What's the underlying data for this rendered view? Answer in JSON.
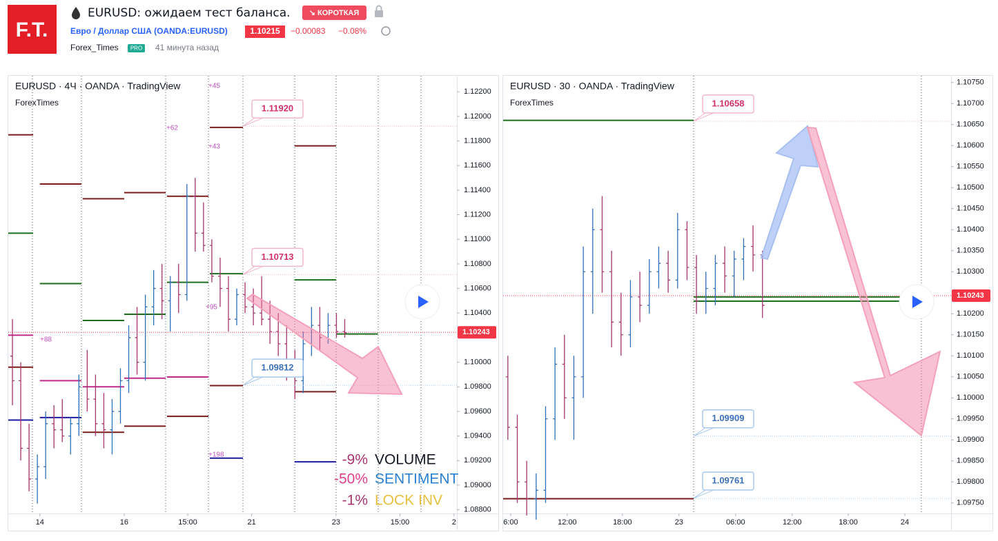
{
  "header": {
    "logo": "F.T.",
    "title": "EURUSD: ожидаем тест баланса.",
    "badge": "↘ КОРОТКАЯ",
    "symbol": "Евро / Доллар США (OANDA:EURUSD)",
    "price": "1.10215",
    "change": "−0.00083",
    "change_pct": "−0.08%",
    "author": "Forex_Times",
    "pro": "PRO",
    "time": "41 минута назад"
  },
  "chart_data": [
    {
      "type": "ohlc",
      "title": "EURUSD · 4Ч · OANDA · TradingView",
      "watermark": "ForexTimes",
      "up_color": "#2f6fb5",
      "down_color": "#a3356f",
      "xlim": [
        0,
        108
      ],
      "xticks": [
        {
          "value": 7.6,
          "label": "14"
        },
        {
          "value": 27.9,
          "label": "16"
        },
        {
          "value": 43.2,
          "label": "15:00"
        },
        {
          "value": 58.6,
          "label": "21"
        },
        {
          "value": 78.9,
          "label": "23"
        },
        {
          "value": 94.3,
          "label": "15:00"
        },
        {
          "value": 107.3,
          "label": "2"
        }
      ],
      "ylim": [
        1.0877,
        1.1233
      ],
      "yticks": [
        {
          "value": 1.122,
          "label": "1.12200"
        },
        {
          "value": 1.12,
          "label": "1.12000"
        },
        {
          "value": 1.118,
          "label": "1.11800"
        },
        {
          "value": 1.116,
          "label": "1.11600"
        },
        {
          "value": 1.114,
          "label": "1.11400"
        },
        {
          "value": 1.112,
          "label": "1.11200"
        },
        {
          "value": 1.11,
          "label": "1.11000"
        },
        {
          "value": 1.108,
          "label": "1.10800"
        },
        {
          "value": 1.106,
          "label": "1.10600"
        },
        {
          "value": 1.104,
          "label": "1.10400"
        },
        {
          "value": 1.1,
          "label": "1.10000"
        },
        {
          "value": 1.098,
          "label": "1.09800"
        },
        {
          "value": 1.096,
          "label": "1.09600"
        },
        {
          "value": 1.094,
          "label": "1.09400"
        },
        {
          "value": 1.092,
          "label": "1.09200"
        },
        {
          "value": 1.09,
          "label": "1.09000"
        },
        {
          "value": 1.088,
          "label": "1.08800"
        }
      ],
      "bars": {
        "x": [
          1,
          3,
          5,
          7,
          9,
          11,
          13,
          15,
          17,
          19,
          21,
          23,
          25,
          27,
          29,
          31,
          33,
          35,
          37,
          39,
          41,
          43,
          45,
          47,
          49,
          51,
          53,
          55,
          57,
          59,
          61,
          63,
          65,
          67,
          69,
          71,
          73,
          75,
          77,
          79,
          81
        ],
        "ohlc": [
          [
            1.1005,
            1.1035,
            1.0965,
            1.0985
          ],
          [
            1.0985,
            1.1,
            1.092,
            1.093
          ],
          [
            1.093,
            1.095,
            1.0895,
            1.0905
          ],
          [
            1.0905,
            1.0925,
            1.0885,
            1.0915
          ],
          [
            1.0915,
            1.096,
            1.0905,
            1.095
          ],
          [
            1.095,
            1.0965,
            1.093,
            1.0945
          ],
          [
            1.0945,
            1.097,
            1.0935,
            1.094
          ],
          [
            1.094,
            1.0955,
            1.0925,
            1.095
          ],
          [
            1.095,
            1.099,
            1.094,
            1.098
          ],
          [
            1.098,
            1.101,
            1.096,
            1.097
          ],
          [
            1.097,
            1.099,
            1.094,
            1.095
          ],
          [
            1.095,
            1.0975,
            1.093,
            1.0945
          ],
          [
            1.0945,
            1.097,
            1.0925,
            1.096
          ],
          [
            1.096,
            1.0995,
            1.095,
            1.0985
          ],
          [
            1.0985,
            1.103,
            1.0975,
            1.102
          ],
          [
            1.102,
            1.1045,
            1.099,
            1.1
          ],
          [
            1.1,
            1.1055,
            1.0985,
            1.1045
          ],
          [
            1.1045,
            1.1075,
            1.103,
            1.106
          ],
          [
            1.106,
            1.108,
            1.1035,
            1.105
          ],
          [
            1.105,
            1.107,
            1.1025,
            1.1065
          ],
          [
            1.1065,
            1.108,
            1.104,
            1.1055
          ],
          [
            1.1055,
            1.1145,
            1.105,
            1.1135
          ],
          [
            1.1135,
            1.115,
            1.109,
            1.1105
          ],
          [
            1.1105,
            1.113,
            1.109,
            1.1095
          ],
          [
            1.1095,
            1.11,
            1.1065,
            1.107
          ],
          [
            1.107,
            1.1085,
            1.1045,
            1.106
          ],
          [
            1.106,
            1.107,
            1.1025,
            1.1035
          ],
          [
            1.1035,
            1.106,
            1.103,
            1.1055
          ],
          [
            1.1055,
            1.1065,
            1.104,
            1.1045
          ],
          [
            1.1045,
            1.106,
            1.103,
            1.104
          ],
          [
            1.104,
            1.107,
            1.103,
            1.1035
          ],
          [
            1.1035,
            1.105,
            1.1015,
            1.1025
          ],
          [
            1.1025,
            1.104,
            1.1005,
            1.1015
          ],
          [
            1.1015,
            1.103,
            1.0985,
            1.0995
          ],
          [
            1.0995,
            1.101,
            1.097,
            1.0985
          ],
          [
            1.0985,
            1.1025,
            1.0975,
            1.1015
          ],
          [
            1.1015,
            1.1045,
            1.1005,
            1.103
          ],
          [
            1.103,
            1.1045,
            1.101,
            1.102
          ],
          [
            1.102,
            1.104,
            1.1015,
            1.103
          ],
          [
            1.103,
            1.104,
            1.102,
            1.1025
          ],
          [
            1.1025,
            1.1035,
            1.102,
            1.1024
          ]
        ]
      },
      "levels": [
        {
          "color": "#7b1a1a",
          "x": [
            0,
            6
          ],
          "value": 1.1185
        },
        {
          "color": "#7b1a1a",
          "x": [
            7.6,
            17.6
          ],
          "value": 1.1145
        },
        {
          "color": "#7b1a1a",
          "x": [
            17.9,
            27.9
          ],
          "value": 1.1133
        },
        {
          "color": "#7b1a1a",
          "x": [
            27.9,
            37.9
          ],
          "value": 1.1138
        },
        {
          "color": "#7b1a1a",
          "x": [
            38.2,
            48.2
          ],
          "value": 1.1135
        },
        {
          "color": "#7b1a1a",
          "x": [
            48.5,
            56.5
          ],
          "value": 1.1191
        },
        {
          "color": "#7b1a1a",
          "x": [
            68.9,
            78.9
          ],
          "value": 1.1176
        },
        {
          "color": "#7b1a1a",
          "x": [
            0,
            6
          ],
          "value": 1.0996
        },
        {
          "color": "#7b1a1a",
          "x": [
            17.9,
            27.9
          ],
          "value": 1.0943
        },
        {
          "color": "#7b1a1a",
          "x": [
            27.9,
            37.9
          ],
          "value": 1.0948
        },
        {
          "color": "#7b1a1a",
          "x": [
            38.2,
            48.2
          ],
          "value": 1.0956
        },
        {
          "color": "#7b1a1a",
          "x": [
            48.5,
            56.5
          ],
          "value": 1.0981
        },
        {
          "color": "#7b1a1a",
          "x": [
            68.9,
            78.9
          ],
          "value": 1.0976
        },
        {
          "color": "#1b6e1b",
          "x": [
            0,
            6
          ],
          "value": 1.1105
        },
        {
          "color": "#1b6e1b",
          "x": [
            7.6,
            17.6
          ],
          "value": 1.1064
        },
        {
          "color": "#1b6e1b",
          "x": [
            17.9,
            27.9
          ],
          "value": 1.1034
        },
        {
          "color": "#1b6e1b",
          "x": [
            27.9,
            37.9
          ],
          "value": 1.1039
        },
        {
          "color": "#1b6e1b",
          "x": [
            38.2,
            48.2
          ],
          "value": 1.1065
        },
        {
          "color": "#1b6e1b",
          "x": [
            48.5,
            56.5
          ],
          "value": 1.1072
        },
        {
          "color": "#1b6e1b",
          "x": [
            68.9,
            78.9
          ],
          "value": 1.1067
        },
        {
          "color": "#1b6e1b",
          "x": [
            78.9,
            89
          ],
          "value": 1.1023
        },
        {
          "color": "#c0288a",
          "x": [
            0,
            6
          ],
          "value": 1.1022
        },
        {
          "color": "#c0288a",
          "x": [
            7.6,
            17.6
          ],
          "value": 1.0985
        },
        {
          "color": "#c0288a",
          "x": [
            17.9,
            27.9
          ],
          "value": 1.098
        },
        {
          "color": "#c0288a",
          "x": [
            27.9,
            37.9
          ],
          "value": 1.0987
        },
        {
          "color": "#c0288a",
          "x": [
            38.2,
            48.2
          ],
          "value": 1.0988
        },
        {
          "color": "#1a1a9e",
          "x": [
            0,
            6
          ],
          "value": 1.0953
        },
        {
          "color": "#1a1a9e",
          "x": [
            7.6,
            17.6
          ],
          "value": 1.0955
        },
        {
          "color": "#1a1a9e",
          "x": [
            48.5,
            56.5
          ],
          "value": 1.0922
        },
        {
          "color": "#1a1a9e",
          "x": [
            68.9,
            78.9
          ],
          "value": 1.0919
        }
      ],
      "callouts": [
        {
          "value": 1.1192,
          "label": "1.11920",
          "x": 56.5,
          "color": "#d0306a"
        },
        {
          "value": 1.10713,
          "label": "1.10713",
          "x": 56.5,
          "color": "#d0306a"
        },
        {
          "value": 1.09812,
          "label": "1.09812",
          "x": 56.5,
          "color": "#3b6fb8"
        }
      ],
      "last_price": {
        "value": 1.10243,
        "label": "1.10243"
      },
      "annotations": [
        "+45",
        "+62",
        "+43",
        "+88",
        "+198",
        "+95"
      ],
      "stats": [
        {
          "value": "-9%",
          "label": "VOLUME"
        },
        {
          "value": "-50%",
          "label": "SENTIMENT"
        },
        {
          "value": "-1%",
          "label": "LOCK INV"
        }
      ]
    },
    {
      "type": "ohlc",
      "title": "EURUSD · 30 · OANDA · TradingView",
      "watermark": "ForexTimes",
      "up_color": "#2f6fb5",
      "down_color": "#a3356f",
      "xlim": [
        0,
        95
      ],
      "xticks": [
        {
          "value": 1.6,
          "label": "6:00"
        },
        {
          "value": 13.6,
          "label": "12:00"
        },
        {
          "value": 25.3,
          "label": "18:00"
        },
        {
          "value": 37.3,
          "label": "23"
        },
        {
          "value": 49.3,
          "label": "06:00"
        },
        {
          "value": 61.3,
          "label": "12:00"
        },
        {
          "value": 73.2,
          "label": "18:00"
        },
        {
          "value": 85.2,
          "label": "24"
        }
      ],
      "ylim": [
        1.09725,
        1.10766
      ],
      "yticks": [
        {
          "value": 1.1075,
          "label": "1.10750"
        },
        {
          "value": 1.107,
          "label": "1.10700"
        },
        {
          "value": 1.1065,
          "label": "1.10650"
        },
        {
          "value": 1.106,
          "label": "1.10600"
        },
        {
          "value": 1.1055,
          "label": "1.10550"
        },
        {
          "value": 1.105,
          "label": "1.10500"
        },
        {
          "value": 1.1045,
          "label": "1.10450"
        },
        {
          "value": 1.104,
          "label": "1.10400"
        },
        {
          "value": 1.1035,
          "label": "1.10350"
        },
        {
          "value": 1.103,
          "label": "1.10300"
        },
        {
          "value": 1.102,
          "label": "1.10200"
        },
        {
          "value": 1.1015,
          "label": "1.10150"
        },
        {
          "value": 1.101,
          "label": "1.10100"
        },
        {
          "value": 1.1005,
          "label": "1.10050"
        },
        {
          "value": 1.1,
          "label": "1.10000"
        },
        {
          "value": 1.0995,
          "label": "1.09950"
        },
        {
          "value": 1.099,
          "label": "1.09900"
        },
        {
          "value": 1.0985,
          "label": "1.09850"
        },
        {
          "value": 1.098,
          "label": "1.09800"
        },
        {
          "value": 1.0975,
          "label": "1.09750"
        }
      ],
      "bars": {
        "x": [
          1,
          3,
          5,
          7,
          9,
          11,
          13,
          15,
          17,
          19,
          21,
          23,
          25,
          27,
          29,
          31,
          33,
          35,
          37,
          39,
          41,
          43,
          45,
          47,
          49,
          51,
          53,
          55
        ],
        "ohlc": [
          [
            1.1005,
            1.101,
            1.099,
            1.0993
          ],
          [
            1.0993,
            1.0996,
            1.0975,
            1.098
          ],
          [
            1.098,
            1.0985,
            1.0972,
            1.0976
          ],
          [
            1.0976,
            1.0982,
            1.0971,
            1.0978
          ],
          [
            1.0978,
            1.0998,
            1.0975,
            1.0995
          ],
          [
            1.0995,
            1.1012,
            1.099,
            1.1008
          ],
          [
            1.1008,
            1.1015,
            1.0995,
            1.1
          ],
          [
            1.1,
            1.101,
            1.099,
            1.1005
          ],
          [
            1.1005,
            1.1036,
            1.1,
            1.103
          ],
          [
            1.103,
            1.1045,
            1.102,
            1.104
          ],
          [
            1.104,
            1.1048,
            1.1025,
            1.103
          ],
          [
            1.103,
            1.1035,
            1.1012,
            1.1018
          ],
          [
            1.1018,
            1.1025,
            1.101,
            1.1015
          ],
          [
            1.1015,
            1.1028,
            1.1012,
            1.1024
          ],
          [
            1.1024,
            1.103,
            1.1018,
            1.1022
          ],
          [
            1.1022,
            1.1033,
            1.102,
            1.103
          ],
          [
            1.103,
            1.1036,
            1.1026,
            1.1032
          ],
          [
            1.1032,
            1.1035,
            1.1025,
            1.1028
          ],
          [
            1.1028,
            1.1044,
            1.1026,
            1.104
          ],
          [
            1.104,
            1.1042,
            1.1028,
            1.1031
          ],
          [
            1.1031,
            1.1034,
            1.102,
            1.1023
          ],
          [
            1.1023,
            1.103,
            1.102,
            1.1026
          ],
          [
            1.1026,
            1.1034,
            1.1022,
            1.1032
          ],
          [
            1.1032,
            1.1036,
            1.1025,
            1.1029
          ],
          [
            1.1029,
            1.1035,
            1.1024,
            1.1033
          ],
          [
            1.1033,
            1.1038,
            1.1028,
            1.1036
          ],
          [
            1.1036,
            1.1041,
            1.103,
            1.1034
          ],
          [
            1.1034,
            1.1035,
            1.1019,
            1.1022
          ]
        ]
      },
      "levels": [
        {
          "color": "#1b6e1b",
          "x": [
            0,
            40.4
          ],
          "value": 1.1066
        },
        {
          "color": "#7b1a1a",
          "x": [
            0,
            40.4
          ],
          "value": 1.0976
        },
        {
          "color": "#1b6e1b",
          "x": [
            40.4,
            84.3
          ],
          "value": 1.1024
        },
        {
          "color": "#1b6e1b",
          "x": [
            40.4,
            84.3
          ],
          "value": 1.1023
        }
      ],
      "callouts": [
        {
          "value": 1.10658,
          "label": "1.10658",
          "x": 40.4,
          "color": "#d0306a"
        },
        {
          "value": 1.09909,
          "label": "1.09909",
          "x": 40.4,
          "color": "#3b6fb8"
        },
        {
          "value": 1.09761,
          "label": "1.09761",
          "x": 40.4,
          "color": "#3b6fb8"
        }
      ],
      "last_price": {
        "value": 1.10243,
        "label": "1.10243"
      }
    }
  ]
}
